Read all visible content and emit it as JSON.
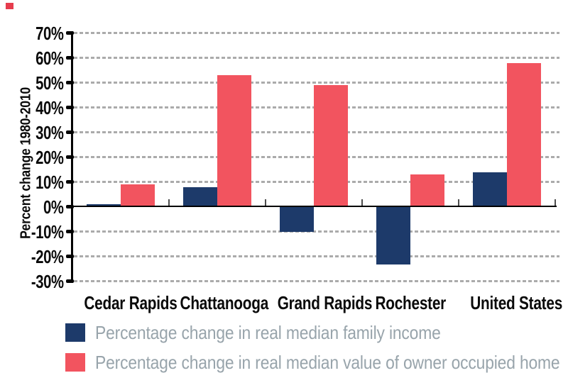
{
  "decorations": {
    "corner_mark_color": "#E63C4D"
  },
  "chart_data": {
    "type": "bar",
    "title": "",
    "xlabel": "",
    "ylabel": "Percent change 1980-2010",
    "categories": [
      "Cedar Rapids",
      "Chattanooga",
      "Grand Rapids",
      "Rochester",
      "United States"
    ],
    "series": [
      {
        "name": "Percentage change in real median family income",
        "color": "#1D3A6A",
        "values": [
          1,
          8,
          -10,
          -23,
          14
        ]
      },
      {
        "name": "Percentage change in real median value of owner occupied home",
        "color": "#F2545F",
        "values": [
          9,
          53,
          49,
          13,
          58
        ]
      }
    ],
    "ylim": [
      -30,
      70
    ],
    "ytick_step": 10,
    "ytick_labels": [
      "70%",
      "60%",
      "50%",
      "40%",
      "30%",
      "20%",
      "10%",
      "0%",
      "-10%",
      "-20%",
      "-30%"
    ],
    "grid": "horizontal-dashed",
    "gridline_color": "#ABABAB",
    "axis_color": "#000000",
    "tick_label_color": "#0A0A0A",
    "legend_position": "bottom-left",
    "legend_text_color": "#98A4AB"
  }
}
